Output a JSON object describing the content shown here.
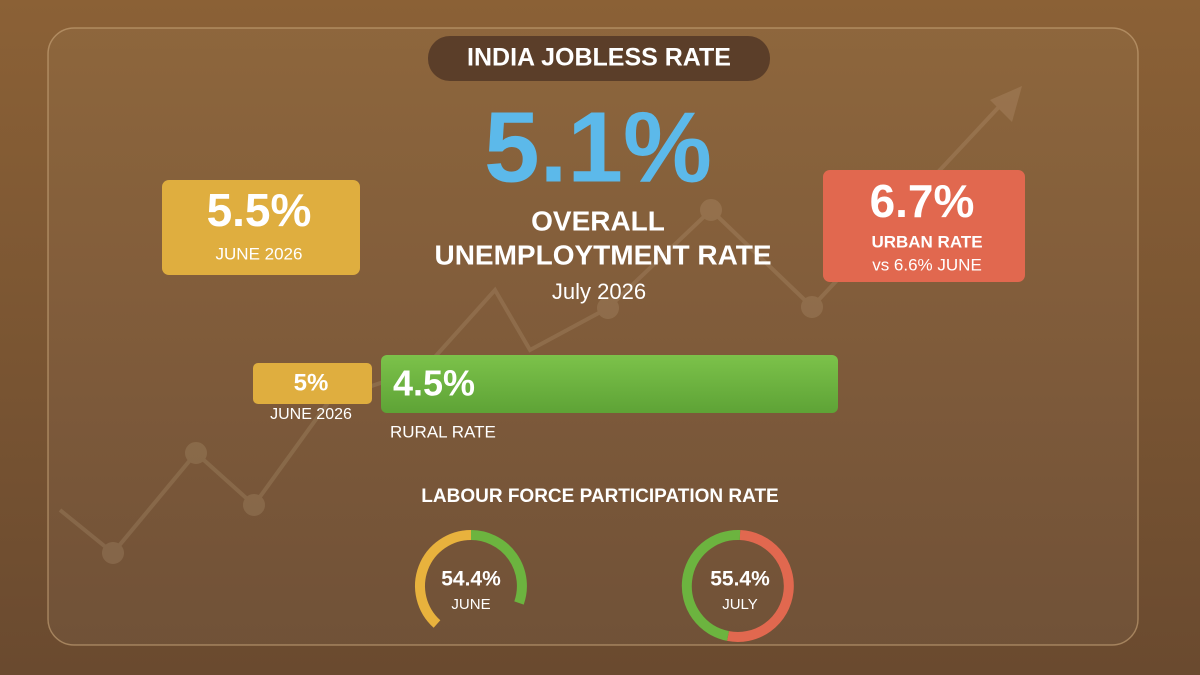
{
  "title": "INDIA JOBLESS RATE",
  "overall": {
    "value": "5.1%",
    "label_line1": "OVERALL",
    "label_line2": "UNEMPLOYTMENT RATE",
    "period": "July 2026"
  },
  "june_overall": {
    "value": "5.5%",
    "label": "JUNE 2026"
  },
  "urban": {
    "value": "6.7%",
    "label": "URBAN RATE",
    "comparison": "vs 6.6% JUNE"
  },
  "rural": {
    "june_value": "5%",
    "june_label": "JUNE 2026",
    "value": "4.5%",
    "label": "RURAL RATE"
  },
  "lfpr": {
    "title": "LABOUR FORCE PARTICIPATION RATE",
    "gauges": [
      {
        "value": "54.4%",
        "label": "JUNE"
      },
      {
        "value": "55.4%",
        "label": "JULY"
      }
    ]
  }
}
